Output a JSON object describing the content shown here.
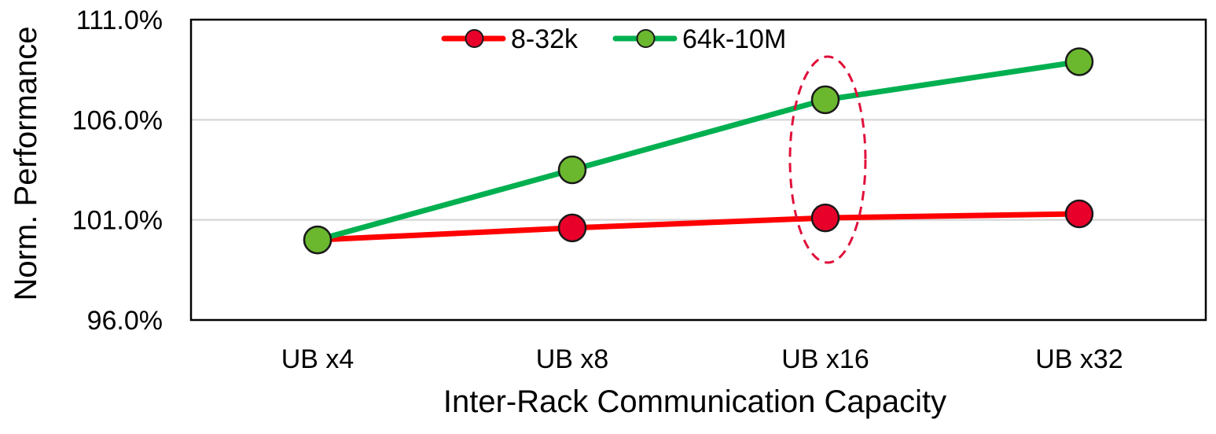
{
  "chart_data": {
    "type": "line",
    "title": "",
    "xlabel": "Inter-Rack Communication Capacity",
    "ylabel": "Norm. Performance",
    "categories": [
      "UB x4",
      "UB x8",
      "UB x16",
      "UB x32"
    ],
    "ylim": [
      96.0,
      111.0
    ],
    "yticks": [
      96.0,
      101.0,
      106.0,
      111.0
    ],
    "ytick_labels": [
      "96.0%",
      "101.0%",
      "106.0%",
      "111.0%"
    ],
    "grid": "horizontal",
    "legend_position": "top-center",
    "series": [
      {
        "name": "8-32k",
        "color": "#ff0000",
        "marker_color": "#e8002b",
        "values": [
          100.0,
          100.6,
          101.1,
          101.3
        ]
      },
      {
        "name": "64k-10M",
        "color": "#00b050",
        "marker_color": "#6bb82e",
        "values": [
          100.0,
          103.5,
          107.0,
          108.9
        ]
      }
    ],
    "annotations": [
      {
        "type": "dashed-ellipse",
        "category": "UB x16",
        "color": "#e0103a"
      }
    ]
  }
}
